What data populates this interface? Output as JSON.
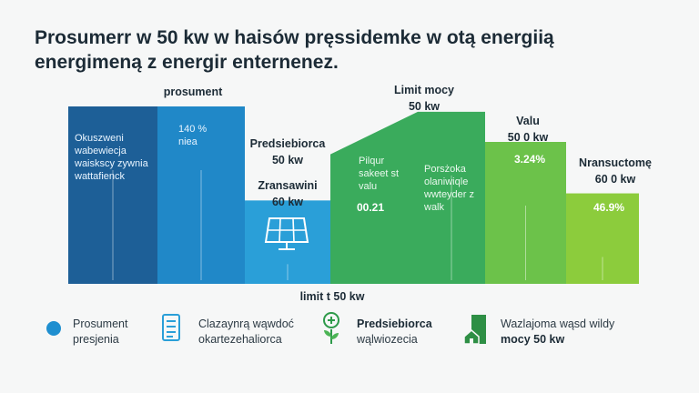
{
  "title_lines": [
    "Prosumerr w 50 kw w haisów pręssidemke w otą energiią",
    "energimeną z energir enternenez."
  ],
  "colors": {
    "dark_blue": "#1d5f97",
    "blue": "#1f88c9",
    "light_blue": "#2a9fd8",
    "teal_green": "#2fa36a",
    "green": "#3aab5c",
    "light_green": "#6cc24a",
    "lime": "#8ccc3c"
  },
  "chart_data": {
    "type": "bar",
    "bars": [
      {
        "top_label": [
          "prosument"
        ],
        "inner_text": [
          "Okuszweni",
          "wabewiecja",
          "waiskscy zywnia",
          "wattafienck"
        ],
        "value_text": "",
        "color": "#1d5f97",
        "level": 1.0
      },
      {
        "top_label": [],
        "inner_text": [
          "140 %",
          "niea"
        ],
        "value_text": "",
        "color": "#2088c8",
        "level": 1.0
      },
      {
        "top_label": [
          "Predsiebiorca",
          "50 kw",
          "Zransawini",
          "60 kw"
        ],
        "inner_text": [],
        "value_text": "",
        "icon": "solar-panel-icon",
        "color": "#2a9fd8",
        "level": 0.47
      },
      {
        "top_label": [],
        "inner_text": [
          "Pilqur",
          "sakeet st",
          "valu"
        ],
        "value_text": "00.21",
        "color": "#2f9f6c",
        "level": 0.73
      },
      {
        "top_label": [
          "Limit mocy",
          "50 kw"
        ],
        "inner_text": [
          "Porsżoka",
          "olaniwiqle",
          "wwteyder z",
          "walk"
        ],
        "value_text": "",
        "color": "#3aab5c",
        "level": 0.97
      },
      {
        "top_label": [
          "Valu",
          "50 0 kw"
        ],
        "inner_text": [],
        "value_text": "3.24%",
        "color": "#6cc24a",
        "level": 0.8
      },
      {
        "top_label": [
          "Nransuctomę",
          "60 0 kw"
        ],
        "inner_text": [],
        "value_text": "46.9%",
        "color": "#8ccc3c",
        "level": 0.51
      }
    ],
    "bottom_label": "limit t 50 kw"
  },
  "legend": [
    {
      "icon": "blue-dot-icon",
      "lines": [
        "Prosument",
        "presjenia"
      ],
      "bold_first": false
    },
    {
      "icon": "document-icon",
      "lines": [
        "Clazaynrą wąwdoć",
        "okartezehaliorca"
      ],
      "bold_first": false
    },
    {
      "icon": "plant-plus-icon",
      "lines": [
        "Predsiebiorca",
        "wąlwiozecia"
      ],
      "bold_first": true
    },
    {
      "icon": "house-flag-icon",
      "lines": [
        "Wazlajoma wąsd wildy",
        "mocy 50 kw"
      ],
      "bold_second": true
    }
  ]
}
